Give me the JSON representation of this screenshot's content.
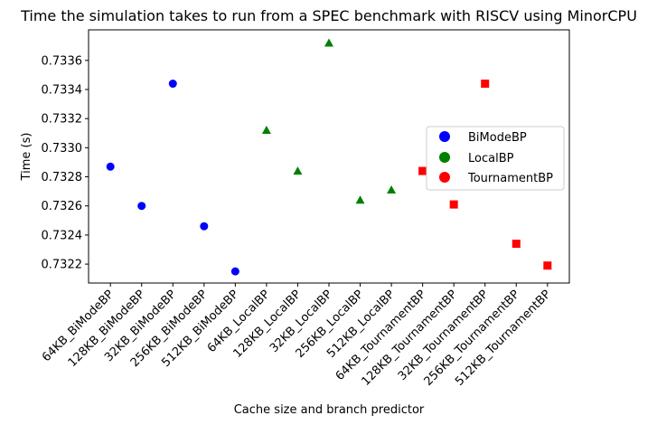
{
  "chart_data": {
    "type": "scatter",
    "title": "Time the simulation takes to run from a SPEC benchmark with RISCV using MinorCPU",
    "xlabel": "Cache size and branch predictor",
    "ylabel": "Time (s)",
    "categories": [
      "64KB_BiModeBP",
      "128KB_BiModeBP",
      "32KB_BiModeBP",
      "256KB_BiModeBP",
      "512KB_BiModeBP",
      "64KB_LocalBP",
      "128KB_LocalBP",
      "32KB_LocalBP",
      "256KB_LocalBP",
      "512KB_LocalBP",
      "64KB_TournamentBP",
      "128KB_TournamentBP",
      "32KB_TournamentBP",
      "256KB_TournamentBP",
      "512KB_TournamentBP"
    ],
    "ylim": [
      0.73207,
      0.73381
    ],
    "yticks": [
      "0.7322",
      "0.7324",
      "0.7326",
      "0.7328",
      "0.7330",
      "0.7332",
      "0.7334",
      "0.7336"
    ],
    "grid": false,
    "legend_position": "right",
    "series": [
      {
        "name": "BiModeBP",
        "marker": "circle",
        "color": "#0000ff",
        "x": [
          0,
          1,
          2,
          3,
          4
        ],
        "values": [
          0.73287,
          0.7326,
          0.73344,
          0.73246,
          0.73215
        ]
      },
      {
        "name": "LocalBP",
        "marker": "triangle",
        "color": "#008000",
        "x": [
          5,
          6,
          7,
          8,
          9
        ],
        "values": [
          0.73312,
          0.73284,
          0.73372,
          0.73264,
          0.73271
        ]
      },
      {
        "name": "TournamentBP",
        "marker": "square",
        "color": "#ff0000",
        "x": [
          10,
          11,
          12,
          13,
          14
        ],
        "values": [
          0.73284,
          0.73261,
          0.73344,
          0.73234,
          0.73219
        ]
      }
    ]
  }
}
